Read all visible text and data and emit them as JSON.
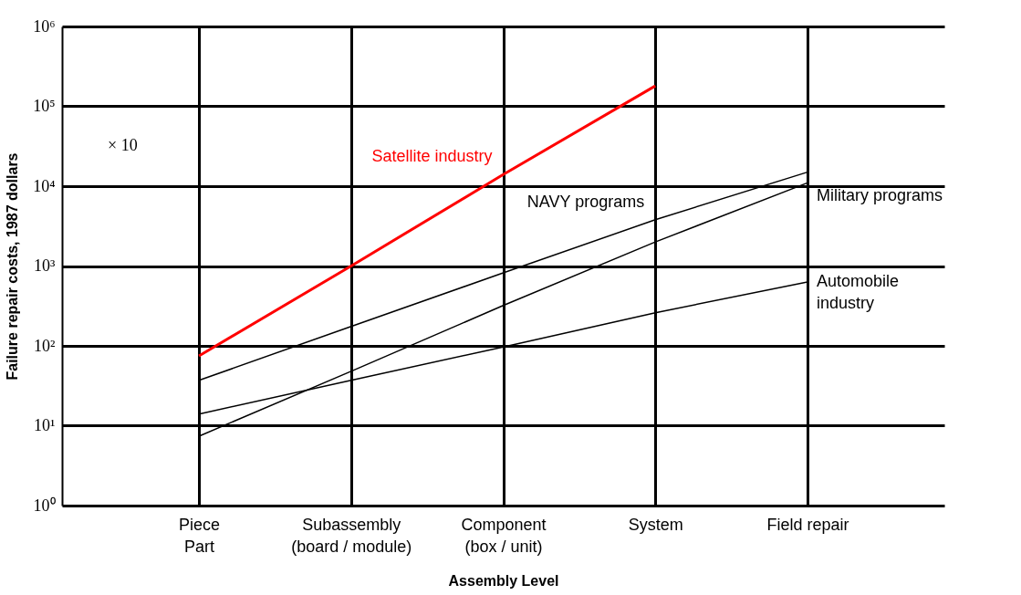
{
  "chart_data": {
    "type": "line",
    "xlabel": "Assembly Level",
    "ylabel": "Failure repair costs, 1987 dollars",
    "categories": [
      "Piece\nPart",
      "Subassembly\n(board / module)",
      "Component\n(box / unit)",
      "System",
      "Field repair"
    ],
    "series": [
      {
        "name": "Satellite industry",
        "color": "#ff0000",
        "values": [
          75,
          1000,
          14000,
          180000,
          null
        ]
      },
      {
        "name": "NAVY programs",
        "color": "#000000",
        "values": [
          37,
          175,
          820,
          3800,
          15000
        ]
      },
      {
        "name": "Military programs",
        "color": "#000000",
        "values": [
          7.4,
          48,
          320,
          2000,
          11000
        ]
      },
      {
        "name": "Automobile industry",
        "color": "#000000",
        "values": [
          14,
          37,
          97,
          260,
          630
        ]
      }
    ],
    "log": "y",
    "ylim": [
      1,
      1000000
    ],
    "yticks": [
      {
        "value": 1,
        "label": "10⁰"
      },
      {
        "value": 10,
        "label": "10¹"
      },
      {
        "value": 100,
        "label": "10²"
      },
      {
        "value": 1000,
        "label": "10³"
      },
      {
        "value": 10000,
        "label": "10⁴"
      },
      {
        "value": 100000,
        "label": "10⁵"
      },
      {
        "value": 1000000,
        "label": "10⁶"
      }
    ],
    "grid": true,
    "marker": "none",
    "line_style": "solid",
    "annotations": [
      "× 10"
    ]
  }
}
